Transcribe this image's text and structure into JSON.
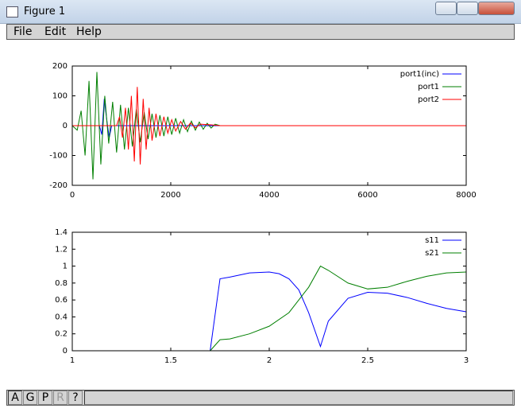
{
  "window": {
    "title": "Figure 1",
    "menu": [
      "File",
      "Edit",
      "Help"
    ],
    "toolbar": [
      "A",
      "G",
      "P",
      "R",
      "?"
    ]
  },
  "chart_data": [
    {
      "type": "line",
      "xlim": [
        0,
        8000
      ],
      "xticks": [
        0,
        2000,
        4000,
        6000,
        8000
      ],
      "ylim": [
        -200,
        200
      ],
      "yticks": [
        -200,
        -100,
        0,
        100,
        200
      ],
      "grid": false,
      "legend": "northeast",
      "series": [
        {
          "name": "port1(inc)",
          "color": "#0000ff",
          "x": [
            0,
            550,
            600,
            650,
            700,
            750,
            800,
            8000
          ],
          "values": [
            0,
            0,
            -30,
            90,
            20,
            -40,
            0,
            0
          ]
        },
        {
          "name": "port1",
          "color": "#007f00",
          "x": [
            0,
            100,
            180,
            260,
            340,
            420,
            500,
            580,
            660,
            740,
            820,
            900,
            980,
            1060,
            1140,
            1220,
            1300,
            1380,
            1460,
            1540,
            1620,
            1700,
            1780,
            1860,
            1940,
            2020,
            2100,
            2180,
            2260,
            2340,
            2420,
            2500,
            2580,
            2660,
            2740,
            2820,
            2900,
            3000,
            3500,
            8000
          ],
          "values": [
            0,
            -15,
            50,
            -100,
            150,
            -180,
            180,
            -130,
            100,
            -60,
            80,
            -90,
            70,
            -80,
            60,
            -70,
            55,
            -55,
            45,
            -45,
            40,
            -40,
            35,
            -35,
            30,
            -30,
            25,
            -25,
            20,
            -20,
            15,
            -15,
            12,
            -12,
            8,
            -8,
            5,
            0,
            0,
            0
          ]
        },
        {
          "name": "port2",
          "color": "#ff0000",
          "x": [
            0,
            900,
            960,
            1020,
            1080,
            1140,
            1200,
            1260,
            1320,
            1380,
            1440,
            1500,
            1560,
            1620,
            1700,
            1780,
            1860,
            1940,
            2020,
            2100,
            2200,
            2300,
            2400,
            2500,
            2600,
            2800,
            3000,
            8000
          ],
          "values": [
            0,
            0,
            30,
            -40,
            60,
            -80,
            100,
            -120,
            130,
            -130,
            90,
            -80,
            60,
            -50,
            40,
            -35,
            30,
            -25,
            20,
            -18,
            14,
            -12,
            9,
            -7,
            5,
            3,
            0,
            0
          ]
        }
      ]
    },
    {
      "type": "line",
      "xlim": [
        1,
        3
      ],
      "xticks": [
        1,
        1.5,
        2,
        2.5,
        3
      ],
      "ylim": [
        0,
        1.4
      ],
      "yticks": [
        0,
        0.2,
        0.4,
        0.6,
        0.8,
        1,
        1.2,
        1.4
      ],
      "grid": false,
      "legend": "northeast",
      "series": [
        {
          "name": "s11",
          "color": "#0000ff",
          "x": [
            1.7,
            1.75,
            1.8,
            1.9,
            2.0,
            2.05,
            2.1,
            2.15,
            2.2,
            2.26,
            2.3,
            2.4,
            2.5,
            2.6,
            2.7,
            2.8,
            2.9,
            3.0
          ],
          "values": [
            0,
            0.85,
            0.87,
            0.92,
            0.93,
            0.91,
            0.85,
            0.72,
            0.45,
            0.05,
            0.35,
            0.62,
            0.69,
            0.68,
            0.63,
            0.56,
            0.5,
            0.46
          ]
        },
        {
          "name": "s21",
          "color": "#007f00",
          "x": [
            1.7,
            1.75,
            1.8,
            1.9,
            2.0,
            2.1,
            2.2,
            2.26,
            2.3,
            2.4,
            2.5,
            2.6,
            2.7,
            2.8,
            2.9,
            3.0
          ],
          "values": [
            0,
            0.13,
            0.14,
            0.2,
            0.29,
            0.45,
            0.75,
            1.0,
            0.95,
            0.8,
            0.73,
            0.75,
            0.82,
            0.88,
            0.92,
            0.93
          ]
        }
      ]
    }
  ]
}
